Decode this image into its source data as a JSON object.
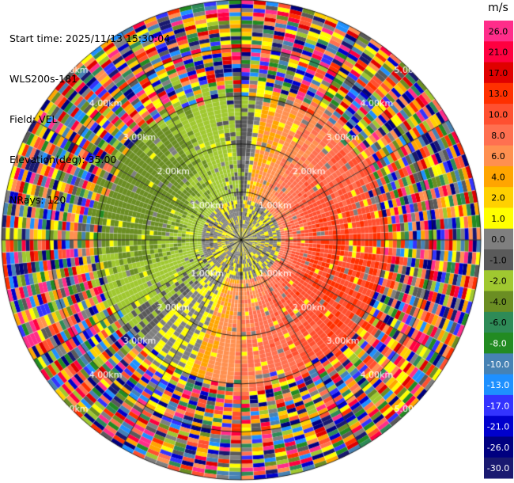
{
  "header": {
    "start_time": "Start time: 2025/11/13 15:30:04",
    "instrument": "WLS200s-181",
    "field": "Field: VEL",
    "elevation": "Elevation(deg): 35.00",
    "nrays": "NRays: 120"
  },
  "chart_data": {
    "type": "heatmap",
    "projection": "polar-ppi",
    "n_rays": 120,
    "field": "VEL",
    "ring_labels": [
      "1.00km",
      "2.00km",
      "3.00km",
      "4.00km",
      "5.00km"
    ],
    "ring_label_azimuths_deg": [
      45,
      135,
      225,
      315
    ],
    "spokes": "every 30 deg",
    "colorbar": {
      "unit": "m/s",
      "tick_labels": [
        "26.0",
        "21.0",
        "17.0",
        "13.0",
        "10.0",
        "8.0",
        "6.0",
        "4.0",
        "2.0",
        "1.0",
        "0.0",
        "-1.0",
        "-2.0",
        "-4.0",
        "-6.0",
        "-8.0",
        "-10.0",
        "-13.0",
        "-17.0",
        "-21.0",
        "-26.0",
        "-30.0"
      ],
      "colors": [
        "#ff2d8a",
        "#ff0040",
        "#e00000",
        "#ff3000",
        "#ff5030",
        "#ff7050",
        "#ff9050",
        "#ffa500",
        "#ffd000",
        "#ffff00",
        "#7f7f7f",
        "#5a5a5a",
        "#a0c830",
        "#6b8e23",
        "#2e8b57",
        "#228b22",
        "#4682b4",
        "#1e90ff",
        "#3333ff",
        "#0000cd",
        "#000080",
        "#191970"
      ]
    },
    "velocity_pattern": {
      "inner_near_zero_radius_km": 0.8,
      "positive_sector_deg": [
        10,
        200
      ],
      "negative_sector_deg": [
        250,
        340
      ],
      "clean_data_radius_km": 3.1,
      "noise_radius_km": 5.0
    }
  }
}
